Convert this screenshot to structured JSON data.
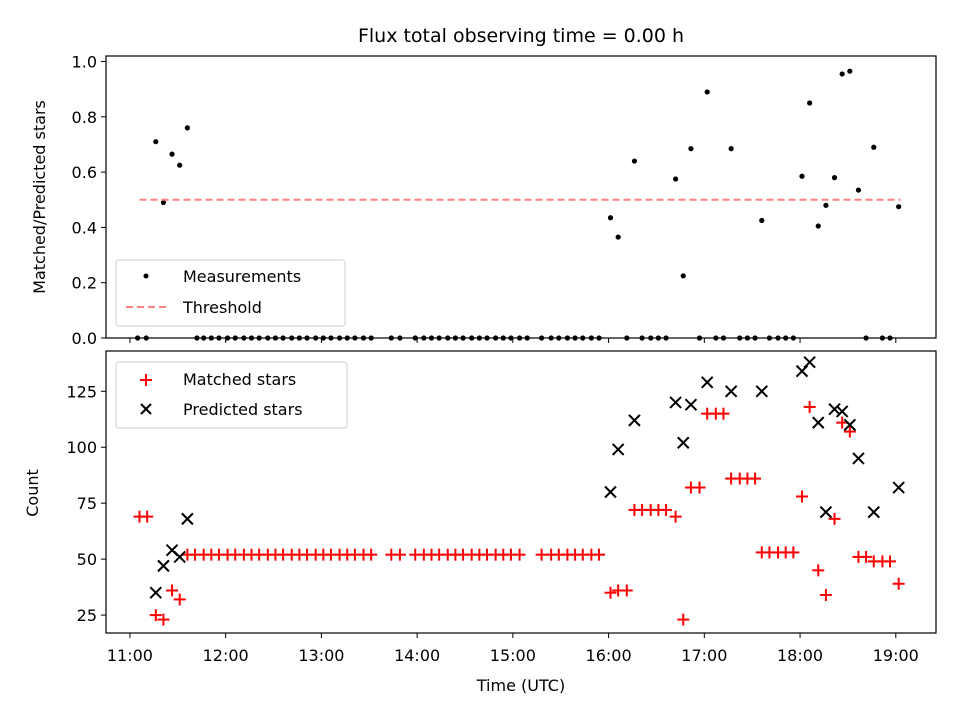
{
  "chart_data": [
    {
      "type": "scatter",
      "title": "Flux total observing time = 0.00 h",
      "xlabel": "",
      "ylabel": "Matched/Predicted stars",
      "xlim": [
        10.75,
        19.42
      ],
      "ylim": [
        0,
        1.02
      ],
      "xticks": [
        "11:00",
        "12:00",
        "13:00",
        "14:00",
        "15:00",
        "16:00",
        "17:00",
        "18:00",
        "19:00"
      ],
      "yticks": [
        "0.0",
        "0.2",
        "0.4",
        "0.6",
        "0.8",
        "1.0"
      ],
      "ytick_values": [
        0,
        0.2,
        0.4,
        0.6,
        0.8,
        1.0
      ],
      "legend": {
        "location": "lower-left",
        "entries": [
          "Measurements",
          "Threshold"
        ]
      },
      "series": [
        {
          "name": "Measurements",
          "color": "#000000",
          "marker": "dot",
          "x": [
            11.27,
            11.35,
            11.44,
            11.52,
            11.6,
            16.02,
            16.1,
            16.27,
            16.7,
            16.78,
            16.86,
            17.03,
            17.28,
            17.6,
            18.02,
            18.1,
            18.19,
            18.27,
            18.36,
            18.44,
            18.52,
            18.61,
            18.77,
            19.03,
            11.08,
            11.17,
            11.7,
            11.77,
            11.85,
            11.93,
            12.02,
            12.1,
            12.19,
            12.27,
            12.35,
            12.44,
            12.52,
            12.6,
            12.69,
            12.77,
            12.85,
            12.94,
            13.02,
            13.1,
            13.19,
            13.27,
            13.35,
            13.44,
            13.52,
            13.73,
            13.82,
            13.98,
            14.07,
            14.15,
            14.23,
            14.32,
            14.4,
            14.48,
            14.57,
            14.65,
            14.73,
            14.82,
            14.9,
            14.98,
            15.07,
            15.15,
            15.3,
            15.4,
            15.48,
            15.57,
            15.65,
            15.73,
            15.82,
            15.9,
            16.19,
            16.35,
            16.44,
            16.52,
            16.6,
            16.95,
            17.12,
            17.2,
            17.37,
            17.45,
            17.53,
            17.68,
            17.77,
            17.85,
            17.93,
            18.69,
            18.86,
            18.94
          ],
          "y": [
            0.71,
            0.49,
            0.665,
            0.625,
            0.76,
            0.435,
            0.365,
            0.64,
            0.575,
            0.225,
            0.685,
            0.89,
            0.685,
            0.425,
            0.585,
            0.85,
            0.405,
            0.48,
            0.58,
            0.955,
            0.965,
            0.535,
            0.69,
            0.475,
            0,
            0,
            0,
            0,
            0,
            0,
            0,
            0,
            0,
            0,
            0,
            0,
            0,
            0,
            0,
            0,
            0,
            0,
            0,
            0,
            0,
            0,
            0,
            0,
            0,
            0,
            0,
            0,
            0,
            0,
            0,
            0,
            0,
            0,
            0,
            0,
            0,
            0,
            0,
            0,
            0,
            0,
            0,
            0,
            0,
            0,
            0,
            0,
            0,
            0,
            0,
            0,
            0,
            0,
            0,
            0,
            0,
            0,
            0,
            0,
            0,
            0,
            0,
            0,
            0,
            0,
            0,
            0
          ]
        },
        {
          "name": "Threshold",
          "color": "#ff8080",
          "style": "dashed",
          "x": [
            11.1,
            19.05
          ],
          "y": [
            0.5,
            0.5
          ]
        }
      ]
    },
    {
      "type": "scatter",
      "title": "",
      "xlabel": "Time (UTC)",
      "ylabel": "Count",
      "xlim": [
        10.75,
        19.42
      ],
      "ylim": [
        17,
        143
      ],
      "xticks": [
        "11:00",
        "12:00",
        "13:00",
        "14:00",
        "15:00",
        "16:00",
        "17:00",
        "18:00",
        "19:00"
      ],
      "yticks": [
        "25",
        "50",
        "75",
        "100",
        "125"
      ],
      "ytick_values": [
        25,
        50,
        75,
        100,
        125
      ],
      "legend": {
        "location": "upper-left",
        "entries": [
          "Matched stars",
          "Predicted stars"
        ]
      },
      "series": [
        {
          "name": "Matched stars",
          "color": "#ff0000",
          "marker": "plus",
          "x": [
            11.1,
            11.18,
            11.27,
            11.35,
            11.44,
            11.52,
            11.6,
            11.68,
            11.77,
            11.85,
            11.93,
            12.02,
            12.1,
            12.19,
            12.27,
            12.35,
            12.44,
            12.52,
            12.6,
            12.69,
            12.77,
            12.85,
            12.94,
            13.02,
            13.1,
            13.19,
            13.27,
            13.35,
            13.44,
            13.52,
            13.73,
            13.82,
            13.98,
            14.07,
            14.15,
            14.23,
            14.32,
            14.4,
            14.48,
            14.57,
            14.65,
            14.73,
            14.82,
            14.9,
            14.98,
            15.07,
            15.3,
            15.4,
            15.48,
            15.57,
            15.65,
            15.73,
            15.82,
            15.9,
            16.02,
            16.1,
            16.19,
            16.27,
            16.35,
            16.44,
            16.52,
            16.6,
            16.7,
            16.78,
            16.86,
            16.95,
            17.03,
            17.12,
            17.2,
            17.28,
            17.37,
            17.45,
            17.53,
            17.6,
            17.68,
            17.77,
            17.85,
            17.93,
            18.02,
            18.1,
            18.19,
            18.27,
            18.36,
            18.44,
            18.52,
            18.61,
            18.69,
            18.77,
            18.86,
            18.94,
            19.03
          ],
          "y": [
            69,
            69,
            25,
            23,
            36,
            32,
            52,
            52,
            52,
            52,
            52,
            52,
            52,
            52,
            52,
            52,
            52,
            52,
            52,
            52,
            52,
            52,
            52,
            52,
            52,
            52,
            52,
            52,
            52,
            52,
            52,
            52,
            52,
            52,
            52,
            52,
            52,
            52,
            52,
            52,
            52,
            52,
            52,
            52,
            52,
            52,
            52,
            52,
            52,
            52,
            52,
            52,
            52,
            52,
            35,
            36,
            36,
            72,
            72,
            72,
            72,
            72,
            69,
            23,
            82,
            82,
            115,
            115,
            115,
            86,
            86,
            86,
            86,
            53,
            53,
            53,
            53,
            53,
            78,
            118,
            45,
            34,
            68,
            111,
            107,
            51,
            51,
            49,
            49,
            49,
            39
          ]
        },
        {
          "name": "Predicted stars",
          "color": "#000000",
          "marker": "x",
          "x": [
            11.27,
            11.35,
            11.44,
            11.52,
            11.6,
            16.02,
            16.1,
            16.27,
            16.7,
            16.78,
            16.86,
            17.03,
            17.28,
            17.6,
            18.02,
            18.1,
            18.19,
            18.27,
            18.36,
            18.44,
            18.52,
            18.61,
            18.77,
            19.03
          ],
          "y": [
            35,
            47,
            54,
            51,
            68,
            80,
            99,
            112,
            120,
            102,
            119,
            129,
            125,
            125,
            134,
            138,
            111,
            71,
            117,
            116,
            110,
            95,
            71,
            82
          ]
        }
      ]
    }
  ]
}
